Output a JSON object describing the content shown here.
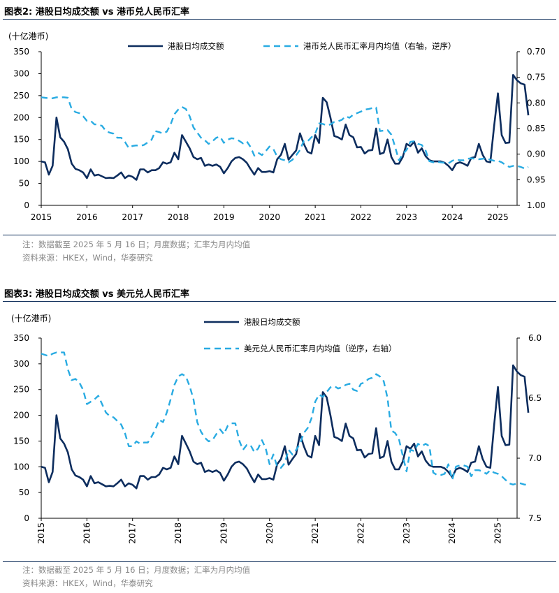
{
  "colors": {
    "hk_turnover": "#0d2d5e",
    "fx_dashed": "#29abe2",
    "rule": "#0a2a57",
    "note": "#888888"
  },
  "figures": [
    {
      "title": "图表2:  港股日均成交额 vs 港币兑人民币汇率",
      "note": "注：数据截至 2025 年 5 月 16 日；月度数据；汇率为月内均值",
      "source": "资料来源：HKEX，Wind，华泰研究"
    },
    {
      "title": "图表3:  港股日均成交额 vs 美元兑人民币汇率",
      "note": "注：数据截至 2025 年 5 月 16 日；月度数据；汇率为月内均值",
      "source": "资料来源：HKEX，Wind，华泰研究"
    }
  ],
  "chart_data": [
    {
      "type": "line",
      "unit_label": "(十亿港币)",
      "x_start": 2015.0,
      "x_step_months": 1,
      "x_ticks": [
        "2015",
        "2016",
        "2017",
        "2018",
        "2019",
        "2020",
        "2021",
        "2022",
        "2023",
        "2024",
        "2025"
      ],
      "y_left": {
        "lim": [
          0,
          350
        ],
        "ticks": [
          "0",
          "50",
          "100",
          "150",
          "200",
          "250",
          "300",
          "350"
        ]
      },
      "y_right": {
        "lim": [
          0.7,
          1.0
        ],
        "inverted": true,
        "ticks": [
          "0.70",
          "0.75",
          "0.80",
          "0.85",
          "0.90",
          "0.95",
          "1.00"
        ]
      },
      "series": [
        {
          "name": "港股日均成交额",
          "axis": "left",
          "style": "solid",
          "values": [
            100,
            98,
            70,
            90,
            200,
            155,
            145,
            128,
            95,
            83,
            80,
            75,
            62,
            82,
            68,
            70,
            66,
            62,
            63,
            62,
            68,
            75,
            62,
            68,
            65,
            58,
            82,
            82,
            75,
            80,
            80,
            85,
            98,
            95,
            98,
            120,
            105,
            160,
            145,
            130,
            110,
            105,
            108,
            90,
            93,
            90,
            93,
            88,
            73,
            85,
            100,
            108,
            110,
            105,
            97,
            83,
            70,
            85,
            76,
            76,
            78,
            75,
            105,
            115,
            140,
            104,
            115,
            125,
            164,
            140,
            122,
            118,
            160,
            142,
            245,
            235,
            200,
            158,
            155,
            150,
            184,
            160,
            155,
            132,
            133,
            118,
            125,
            126,
            175,
            117,
            120,
            150,
            110,
            95,
            95,
            110,
            140,
            135,
            145,
            120,
            130,
            112,
            103,
            100,
            100,
            100,
            97,
            90,
            80,
            95,
            98,
            95,
            90,
            108,
            110,
            140,
            115,
            100,
            98,
            180,
            255,
            160,
            142,
            143,
            297,
            285,
            278,
            275,
            205
          ]
        },
        {
          "name": "港币兑人民币汇率月内均值（右轴，逆序）",
          "axis": "right",
          "style": "dashed",
          "values": [
            0.789,
            0.79,
            0.791,
            0.791,
            0.789,
            0.789,
            0.789,
            0.79,
            0.812,
            0.818,
            0.82,
            0.826,
            0.835,
            0.835,
            0.842,
            0.842,
            0.845,
            0.855,
            0.858,
            0.86,
            0.868,
            0.868,
            0.876,
            0.888,
            0.884,
            0.883,
            0.884,
            0.882,
            0.877,
            0.872,
            0.855,
            0.857,
            0.86,
            0.856,
            0.842,
            0.822,
            0.813,
            0.808,
            0.812,
            0.826,
            0.848,
            0.858,
            0.868,
            0.873,
            0.88,
            0.875,
            0.868,
            0.866,
            0.878,
            0.872,
            0.869,
            0.87,
            0.874,
            0.879,
            0.875,
            0.886,
            0.903,
            0.897,
            0.902,
            0.894,
            0.885,
            0.89,
            0.905,
            0.91,
            0.912,
            0.916,
            0.911,
            0.902,
            0.892,
            0.874,
            0.875,
            0.867,
            0.86,
            0.84,
            0.841,
            0.844,
            0.842,
            0.837,
            0.836,
            0.833,
            0.826,
            0.829,
            0.823,
            0.82,
            0.817,
            0.813,
            0.812,
            0.81,
            0.809,
            0.855,
            0.854,
            0.853,
            0.862,
            0.886,
            0.912,
            0.9,
            0.892,
            0.876,
            0.875,
            0.88,
            0.882,
            0.893,
            0.914,
            0.916,
            0.915,
            0.916,
            0.917,
            0.918,
            0.913,
            0.91,
            0.912,
            0.912,
            0.909,
            0.908,
            0.909,
            0.91,
            0.909,
            0.908,
            0.911,
            0.913,
            0.913,
            0.916,
            0.921,
            0.925,
            0.923,
            0.923,
            0.925,
            0.928,
            0.925
          ]
        }
      ]
    },
    {
      "type": "line",
      "unit_label": "(十亿港币)",
      "x_start": 2015.0,
      "x_step_months": 1,
      "x_ticks": [
        "2015",
        "2016",
        "2017",
        "2018",
        "2019",
        "2020",
        "2021",
        "2022",
        "2023",
        "2024",
        "2025"
      ],
      "y_left": {
        "lim": [
          0,
          350
        ],
        "ticks": [
          "0",
          "50",
          "100",
          "150",
          "200",
          "250",
          "300",
          "350"
        ]
      },
      "y_right": {
        "lim": [
          6.0,
          7.5
        ],
        "inverted": true,
        "ticks": [
          "6.0",
          "6.5",
          "7.0",
          "7.5"
        ]
      },
      "series": [
        {
          "name": "港股日均成交额",
          "axis": "left",
          "style": "solid",
          "values": [
            100,
            98,
            70,
            90,
            200,
            155,
            145,
            128,
            95,
            83,
            80,
            75,
            62,
            82,
            68,
            70,
            66,
            62,
            63,
            62,
            68,
            75,
            62,
            68,
            65,
            58,
            82,
            82,
            75,
            80,
            80,
            85,
            98,
            95,
            98,
            120,
            105,
            160,
            145,
            130,
            110,
            105,
            108,
            90,
            93,
            90,
            93,
            88,
            73,
            85,
            100,
            108,
            110,
            105,
            97,
            83,
            70,
            85,
            76,
            76,
            78,
            75,
            105,
            115,
            140,
            104,
            115,
            125,
            164,
            140,
            122,
            118,
            160,
            142,
            245,
            235,
            200,
            158,
            155,
            150,
            184,
            160,
            155,
            132,
            133,
            118,
            125,
            126,
            175,
            117,
            120,
            150,
            110,
            95,
            95,
            110,
            140,
            135,
            145,
            120,
            130,
            112,
            103,
            100,
            100,
            100,
            97,
            90,
            80,
            95,
            98,
            95,
            90,
            108,
            110,
            140,
            115,
            100,
            98,
            180,
            255,
            160,
            142,
            143,
            297,
            285,
            278,
            275,
            205
          ]
        },
        {
          "name": "美元兑人民币汇率月内均值（逆序，右轴）",
          "axis": "right",
          "style": "dashed",
          "values": [
            6.13,
            6.14,
            6.15,
            6.13,
            6.12,
            6.12,
            6.12,
            6.26,
            6.35,
            6.34,
            6.37,
            6.43,
            6.55,
            6.53,
            6.51,
            6.48,
            6.55,
            6.62,
            6.65,
            6.66,
            6.69,
            6.72,
            6.79,
            6.9,
            6.9,
            6.86,
            6.88,
            6.87,
            6.87,
            6.82,
            6.76,
            6.68,
            6.7,
            6.62,
            6.51,
            6.39,
            6.32,
            6.3,
            6.32,
            6.4,
            6.51,
            6.7,
            6.78,
            6.83,
            6.86,
            6.85,
            6.8,
            6.76,
            6.8,
            6.73,
            6.71,
            6.71,
            6.85,
            6.93,
            6.89,
            6.89,
            6.95,
            6.92,
            6.85,
            6.92,
            7.05,
            6.97,
            7.07,
            7.08,
            7.04,
            6.93,
            6.97,
            6.93,
            6.88,
            6.79,
            6.75,
            6.67,
            6.53,
            6.47,
            6.49,
            6.45,
            6.41,
            6.4,
            6.42,
            6.41,
            6.39,
            6.38,
            6.43,
            6.44,
            6.38,
            6.37,
            6.34,
            6.33,
            6.3,
            6.32,
            6.36,
            6.5,
            6.77,
            6.79,
            6.84,
            6.98,
            7.11,
            6.93,
            6.94,
            6.88,
            6.9,
            6.88,
            6.9,
            7.12,
            7.14,
            7.14,
            7.13,
            7.05,
            7.18,
            7.07,
            7.06,
            7.06,
            7.07,
            7.15,
            7.1,
            7.1,
            7.11,
            7.13,
            7.1,
            7.12,
            7.13,
            7.15,
            7.18,
            7.21,
            7.22,
            7.21,
            7.21,
            7.22,
            7.22
          ]
        }
      ]
    }
  ]
}
